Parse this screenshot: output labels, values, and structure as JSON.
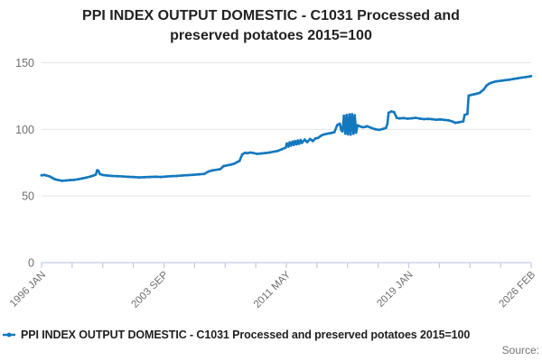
{
  "title": "PPI INDEX OUTPUT DOMESTIC - C1031 Processed and preserved potatoes 2015=100",
  "legend": {
    "label": "PPI INDEX OUTPUT DOMESTIC - C1031 Processed and preserved potatoes 2015=100"
  },
  "source_label": "Source:",
  "colors": {
    "line": "#1378be",
    "axis": "#c5cae1",
    "grid": "#e4e4e4",
    "title_text": "#222222",
    "tick_text": "#6e6e6e"
  },
  "chart_data": {
    "type": "line",
    "title": "PPI INDEX OUTPUT DOMESTIC - C1031 Processed and preserved potatoes 2015=100",
    "xlabel": "",
    "ylabel": "",
    "xlim": [
      1996.0,
      2026.09
    ],
    "ylim": [
      0,
      150
    ],
    "grid": true,
    "legend_position": "bottom-left",
    "x_tick_count": 17,
    "x_tick_labels": [
      {
        "tick_index": 0,
        "label": "1996 JAN"
      },
      {
        "tick_index": 4,
        "label": "2003 SEP"
      },
      {
        "tick_index": 8,
        "label": "2011 MAY"
      },
      {
        "tick_index": 12,
        "label": "2019 JAN"
      },
      {
        "tick_index": 16,
        "label": "2026 FEB"
      }
    ],
    "y_ticks": [
      0,
      50,
      100,
      150
    ],
    "series": [
      {
        "name": "PPI INDEX OUTPUT DOMESTIC - C1031 Processed and preserved potatoes 2015=100",
        "color": "#1378be",
        "points": [
          [
            1996.0,
            65.5
          ],
          [
            1996.17,
            65.8
          ],
          [
            1996.33,
            65.3
          ],
          [
            1996.5,
            64.7
          ],
          [
            1996.67,
            63.5
          ],
          [
            1996.83,
            62.5
          ],
          [
            1997.0,
            62.0
          ],
          [
            1997.25,
            61.4
          ],
          [
            1997.5,
            61.6
          ],
          [
            1997.75,
            61.9
          ],
          [
            1998.0,
            62.1
          ],
          [
            1998.25,
            62.6
          ],
          [
            1998.5,
            63.2
          ],
          [
            1998.75,
            63.8
          ],
          [
            1999.0,
            64.6
          ],
          [
            1999.17,
            65.3
          ],
          [
            1999.33,
            66.0
          ],
          [
            1999.42,
            69.3
          ],
          [
            1999.5,
            68.9
          ],
          [
            1999.58,
            66.5
          ],
          [
            1999.75,
            65.8
          ],
          [
            2000.0,
            65.4
          ],
          [
            2000.33,
            65.1
          ],
          [
            2000.67,
            64.9
          ],
          [
            2001.0,
            64.7
          ],
          [
            2001.33,
            64.4
          ],
          [
            2001.67,
            64.2
          ],
          [
            2002.0,
            63.9
          ],
          [
            2002.33,
            64.1
          ],
          [
            2002.67,
            64.3
          ],
          [
            2003.0,
            64.5
          ],
          [
            2003.33,
            64.3
          ],
          [
            2003.67,
            64.6
          ],
          [
            2004.0,
            64.9
          ],
          [
            2004.33,
            65.1
          ],
          [
            2004.67,
            65.4
          ],
          [
            2005.0,
            65.6
          ],
          [
            2005.33,
            65.9
          ],
          [
            2005.67,
            66.2
          ],
          [
            2006.0,
            66.6
          ],
          [
            2006.25,
            68.3
          ],
          [
            2006.5,
            69.2
          ],
          [
            2006.75,
            69.7
          ],
          [
            2007.0,
            70.2
          ],
          [
            2007.17,
            72.3
          ],
          [
            2007.33,
            72.8
          ],
          [
            2007.5,
            73.2
          ],
          [
            2007.67,
            73.6
          ],
          [
            2007.83,
            74.2
          ],
          [
            2008.0,
            75.3
          ],
          [
            2008.17,
            76.4
          ],
          [
            2008.33,
            81.2
          ],
          [
            2008.5,
            82.4
          ],
          [
            2008.67,
            82.1
          ],
          [
            2008.83,
            82.6
          ],
          [
            2009.0,
            82.3
          ],
          [
            2009.25,
            81.6
          ],
          [
            2009.5,
            81.9
          ],
          [
            2009.75,
            82.2
          ],
          [
            2010.0,
            82.6
          ],
          [
            2010.25,
            83.2
          ],
          [
            2010.5,
            83.8
          ],
          [
            2010.75,
            85.0
          ],
          [
            2011.0,
            86.3
          ],
          [
            2011.08,
            89.4
          ],
          [
            2011.17,
            87.1
          ],
          [
            2011.25,
            90.2
          ],
          [
            2011.33,
            87.8
          ],
          [
            2011.42,
            90.8
          ],
          [
            2011.5,
            88.3
          ],
          [
            2011.58,
            91.2
          ],
          [
            2011.67,
            88.8
          ],
          [
            2011.75,
            91.6
          ],
          [
            2011.83,
            89.2
          ],
          [
            2011.92,
            92.0
          ],
          [
            2012.0,
            89.8
          ],
          [
            2012.17,
            92.3
          ],
          [
            2012.33,
            90.4
          ],
          [
            2012.5,
            92.8
          ],
          [
            2012.67,
            91.2
          ],
          [
            2012.83,
            93.2
          ],
          [
            2013.0,
            93.6
          ],
          [
            2013.17,
            95.2
          ],
          [
            2013.33,
            96.1
          ],
          [
            2013.5,
            96.6
          ],
          [
            2013.67,
            97.0
          ],
          [
            2013.83,
            97.4
          ],
          [
            2014.0,
            97.9
          ],
          [
            2014.17,
            103.2
          ],
          [
            2014.33,
            104.3
          ],
          [
            2014.42,
            99.2
          ],
          [
            2014.5,
            98.6
          ],
          [
            2014.58,
            110.2
          ],
          [
            2014.67,
            96.8
          ],
          [
            2014.75,
            110.8
          ],
          [
            2014.83,
            96.3
          ],
          [
            2014.92,
            111.2
          ],
          [
            2015.0,
            96.1
          ],
          [
            2015.08,
            111.4
          ],
          [
            2015.17,
            96.8
          ],
          [
            2015.25,
            110.6
          ],
          [
            2015.33,
            97.6
          ],
          [
            2015.42,
            103.1
          ],
          [
            2015.58,
            102.2
          ],
          [
            2015.75,
            101.6
          ],
          [
            2015.92,
            101.9
          ],
          [
            2016.0,
            102.4
          ],
          [
            2016.25,
            101.2
          ],
          [
            2016.5,
            100.1
          ],
          [
            2016.75,
            99.6
          ],
          [
            2017.0,
            100.4
          ],
          [
            2017.17,
            101.1
          ],
          [
            2017.25,
            103.8
          ],
          [
            2017.33,
            112.4
          ],
          [
            2017.5,
            113.4
          ],
          [
            2017.67,
            112.9
          ],
          [
            2017.83,
            108.6
          ],
          [
            2018.0,
            108.2
          ],
          [
            2018.25,
            108.5
          ],
          [
            2018.5,
            108.0
          ],
          [
            2018.75,
            108.3
          ],
          [
            2019.0,
            108.6
          ],
          [
            2019.25,
            108.1
          ],
          [
            2019.5,
            107.7
          ],
          [
            2019.75,
            107.9
          ],
          [
            2020.0,
            107.6
          ],
          [
            2020.25,
            107.2
          ],
          [
            2020.5,
            107.5
          ],
          [
            2020.75,
            107.1
          ],
          [
            2021.0,
            106.8
          ],
          [
            2021.25,
            105.9
          ],
          [
            2021.42,
            104.9
          ],
          [
            2021.58,
            105.2
          ],
          [
            2021.75,
            105.6
          ],
          [
            2021.92,
            106.0
          ],
          [
            2022.0,
            110.8
          ],
          [
            2022.17,
            111.6
          ],
          [
            2022.25,
            125.3
          ],
          [
            2022.42,
            125.9
          ],
          [
            2022.58,
            126.3
          ],
          [
            2022.75,
            126.8
          ],
          [
            2022.92,
            127.3
          ],
          [
            2023.0,
            128.1
          ],
          [
            2023.17,
            129.8
          ],
          [
            2023.33,
            132.6
          ],
          [
            2023.5,
            134.2
          ],
          [
            2023.67,
            135.1
          ],
          [
            2023.83,
            135.7
          ],
          [
            2024.0,
            136.1
          ],
          [
            2024.25,
            136.5
          ],
          [
            2024.5,
            136.9
          ],
          [
            2024.75,
            137.3
          ],
          [
            2025.0,
            137.8
          ],
          [
            2025.25,
            138.3
          ],
          [
            2025.5,
            138.8
          ],
          [
            2025.75,
            139.2
          ],
          [
            2026.0,
            139.7
          ],
          [
            2026.08,
            139.9
          ]
        ]
      }
    ]
  }
}
